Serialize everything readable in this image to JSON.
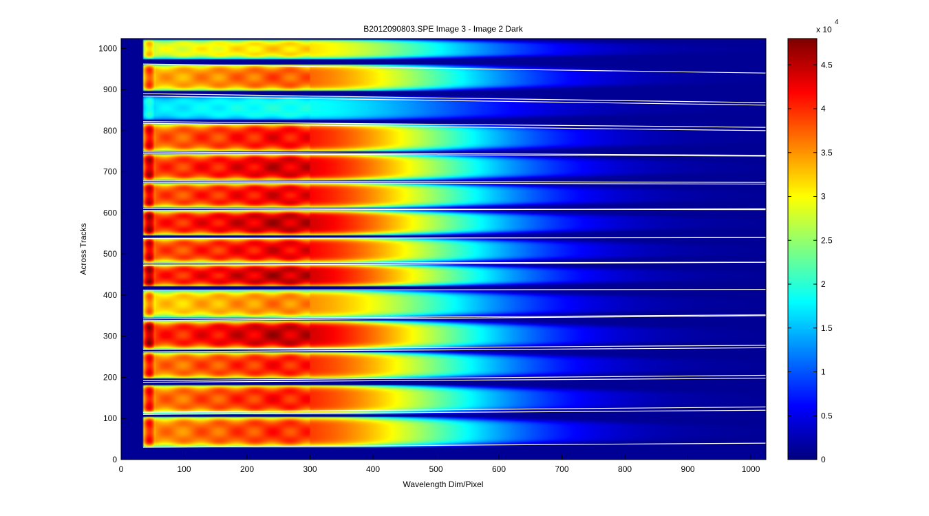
{
  "chart_data": {
    "type": "heatmap",
    "title": "B2012090803.SPE  Image 3 - Image 2 Dark",
    "xlabel": "Wavelength Dim/Pixel",
    "ylabel": "Across Tracks",
    "xlim": [
      0,
      1024
    ],
    "ylim": [
      0,
      1024
    ],
    "x_ticks": [
      0,
      100,
      200,
      300,
      400,
      500,
      600,
      700,
      800,
      900,
      1000
    ],
    "y_ticks": [
      0,
      100,
      200,
      300,
      400,
      500,
      600,
      700,
      800,
      900,
      1000
    ],
    "colormap": "jet",
    "colorbar": {
      "range": [
        0,
        4.8
      ],
      "ticks": [
        0,
        0.5,
        1,
        1.5,
        2,
        2.5,
        3,
        3.5,
        4,
        4.5
      ],
      "tick_labels": [
        "0",
        "0.5",
        "1",
        "1.5",
        "2",
        "2.5",
        "3",
        "3.5",
        "4",
        "4.5"
      ],
      "multiplier": "x 10",
      "exponent": "4"
    },
    "background_value": 0.1,
    "fiber_onset_x": 35,
    "tracks": [
      {
        "y_low": 30,
        "y_high": 105,
        "peak": 4.0
      },
      {
        "y_low": 112,
        "y_high": 182,
        "peak": 4.1
      },
      {
        "y_low": 196,
        "y_high": 262,
        "peak": 4.1
      },
      {
        "y_low": 268,
        "y_high": 338,
        "peak": 4.5
      },
      {
        "y_low": 345,
        "y_high": 412,
        "peak": 3.6
      },
      {
        "y_low": 420,
        "y_high": 475,
        "peak": 4.5
      },
      {
        "y_low": 478,
        "y_high": 540,
        "peak": 4.3
      },
      {
        "y_low": 545,
        "y_high": 606,
        "peak": 4.5
      },
      {
        "y_low": 612,
        "y_high": 673,
        "peak": 4.3
      },
      {
        "y_low": 678,
        "y_high": 744,
        "peak": 4.4
      },
      {
        "y_low": 748,
        "y_high": 818,
        "peak": 4.2
      },
      {
        "y_low": 826,
        "y_high": 884,
        "peak": 1.9
      },
      {
        "y_low": 896,
        "y_high": 962,
        "peak": 3.8
      },
      {
        "y_low": 975,
        "y_high": 1022,
        "peak": 3.2
      }
    ],
    "boundary_lines": [
      [
        30,
        40
      ],
      [
        110,
        120
      ],
      [
        115,
        128
      ],
      [
        188,
        198
      ],
      [
        192,
        205
      ],
      [
        262,
        272
      ],
      [
        268,
        278
      ],
      [
        338,
        350
      ],
      [
        342,
        352
      ],
      [
        412,
        414
      ],
      [
        472,
        480
      ],
      [
        478,
        480
      ],
      [
        538,
        540
      ],
      [
        606,
        610
      ],
      [
        610,
        608
      ],
      [
        674,
        670
      ],
      [
        678,
        674
      ],
      [
        744,
        738
      ],
      [
        748,
        740
      ],
      [
        818,
        800
      ],
      [
        822,
        808
      ],
      [
        884,
        862
      ],
      [
        890,
        868
      ],
      [
        962,
        940
      ]
    ]
  }
}
